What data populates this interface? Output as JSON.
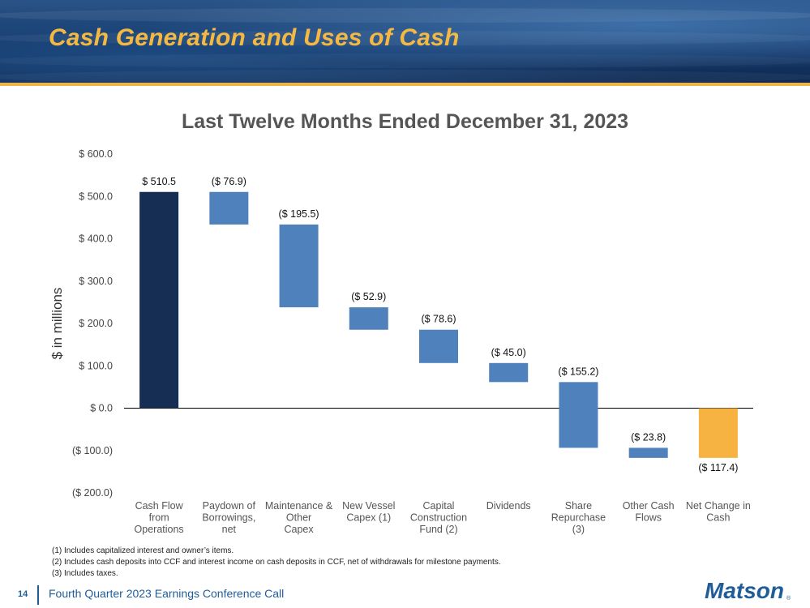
{
  "slide": {
    "title": "Cash Generation and Uses of Cash",
    "page_number": "14",
    "footer_text": "Fourth Quarter 2023 Earnings Conference Call",
    "logo_text": "Matson",
    "logo_mark": "®"
  },
  "footnotes": [
    "(1)   Includes capitalized interest and owner’s items.",
    "(2)   Includes cash deposits into CCF and interest income on cash deposits in CCF, net of withdrawals for milestone payments.",
    "(3)   Includes taxes."
  ],
  "colors": {
    "accent": "#f5b942",
    "total_bar": "#172e54",
    "change_bar": "#4f81bd",
    "net_bar": "#f7b341",
    "brand_blue": "#1f5d99"
  },
  "chart_data": {
    "type": "bar",
    "subtype": "waterfall",
    "title": "Last Twelve Months Ended December 31, 2023",
    "ylabel": "$ in millions",
    "xlabel": "",
    "ylim": [
      -200,
      600
    ],
    "yticks": [
      600,
      500,
      400,
      300,
      200,
      100,
      0,
      -100,
      -200
    ],
    "ytick_labels": [
      "$ 600.0",
      "$ 500.0",
      "$ 400.0",
      "$ 300.0",
      "$ 200.0",
      "$ 100.0",
      "$ 0.0",
      "($ 100.0)",
      "($ 200.0)"
    ],
    "grid": false,
    "categories": [
      [
        "Cash Flow",
        "from",
        "Operations"
      ],
      [
        "Paydown of",
        "Borrowings,",
        "net"
      ],
      [
        "Maintenance &",
        "Other",
        "Capex"
      ],
      [
        "New Vessel",
        "Capex (1)"
      ],
      [
        "Capital",
        "Construction",
        "Fund (2)"
      ],
      [
        "Dividends"
      ],
      [
        "Share",
        "Repurchase",
        "(3)"
      ],
      [
        "Other Cash",
        "Flows"
      ],
      [
        "Net Change in",
        "Cash"
      ]
    ],
    "values": [
      510.5,
      -76.9,
      -195.5,
      -52.9,
      -78.6,
      -45.0,
      -155.2,
      -23.8,
      -117.4
    ],
    "bar_kind": [
      "total",
      "change",
      "change",
      "change",
      "change",
      "change",
      "change",
      "change",
      "net"
    ],
    "data_labels": [
      "$ 510.5",
      "($ 76.9)",
      "($ 195.5)",
      "($ 52.9)",
      "($ 78.6)",
      "($ 45.0)",
      "($ 155.2)",
      "($ 23.8)",
      "($ 117.4)"
    ]
  }
}
